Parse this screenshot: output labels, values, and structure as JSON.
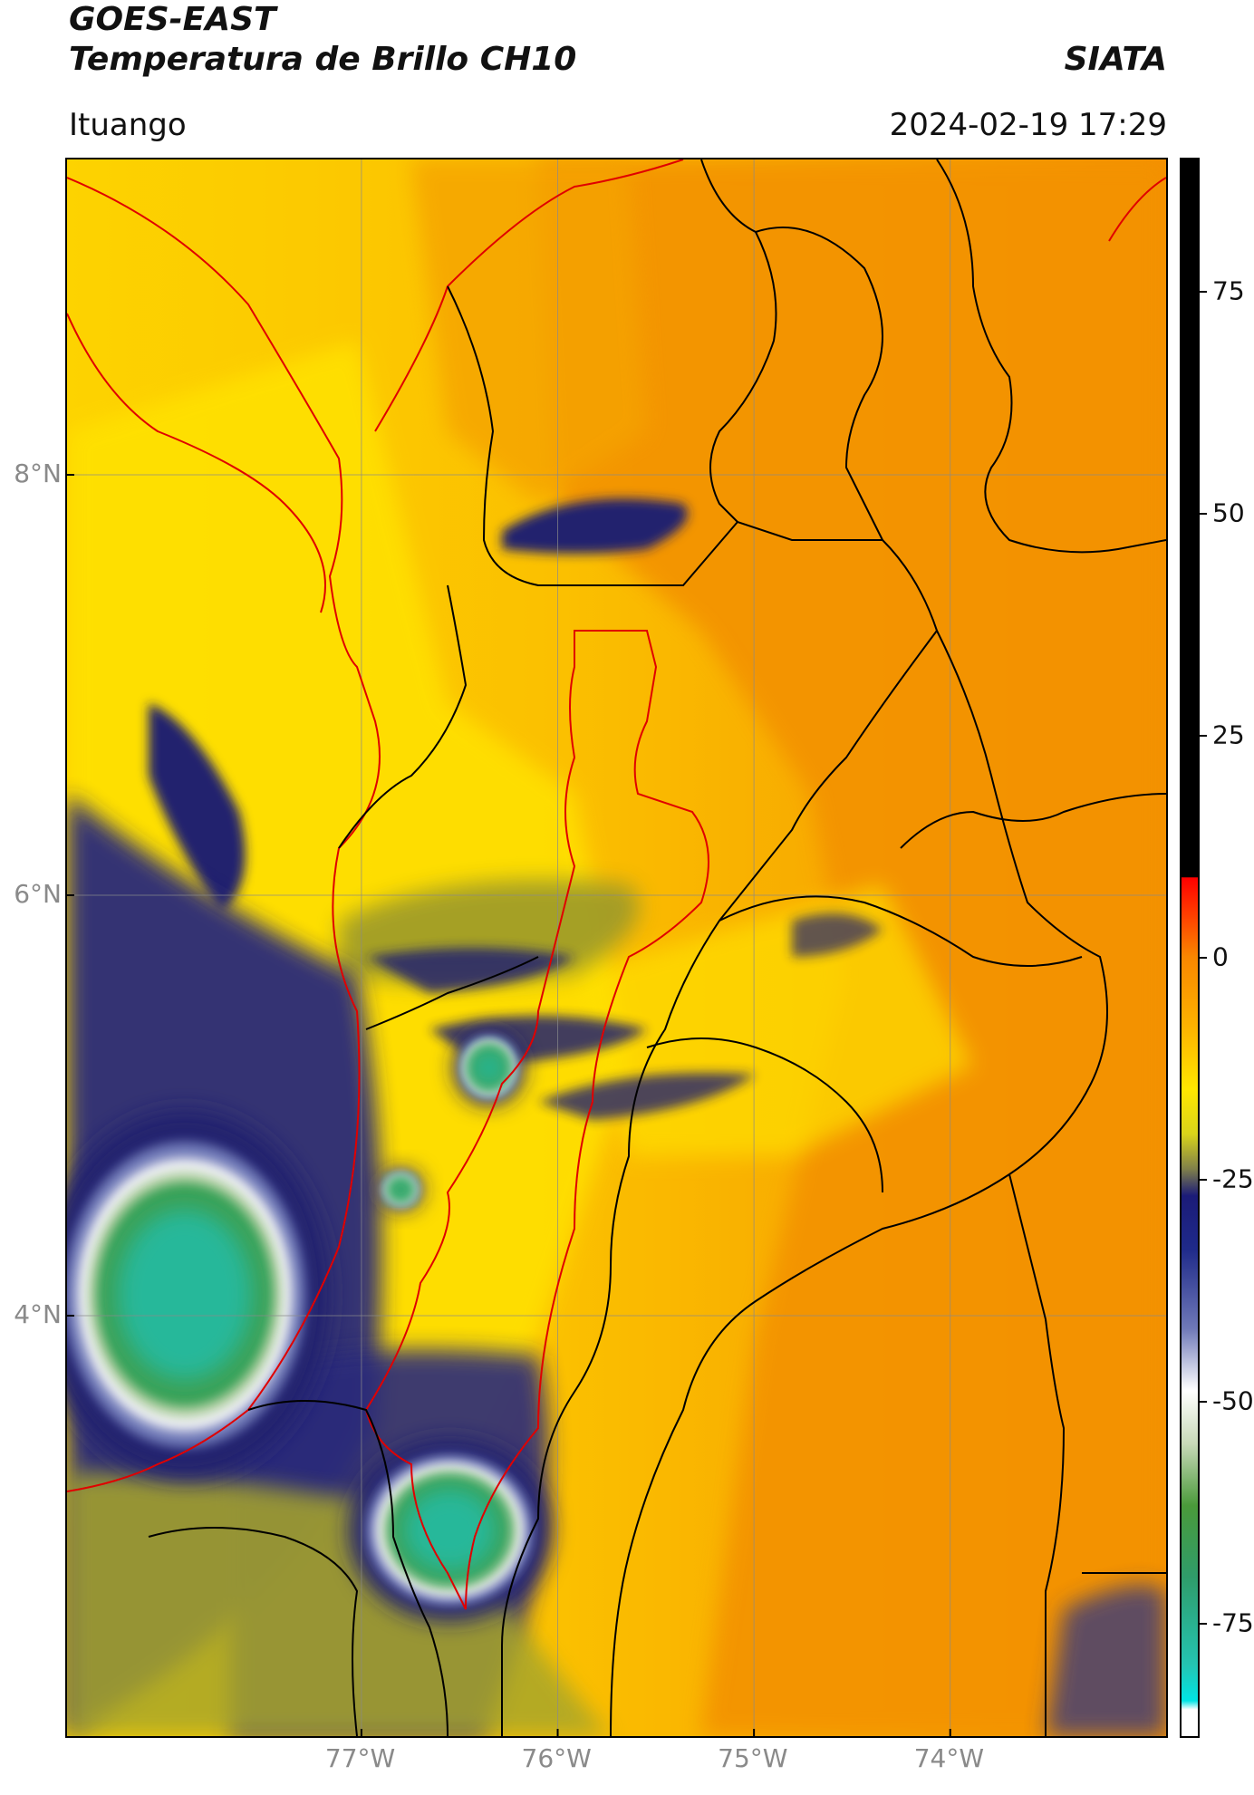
{
  "header": {
    "satellite": "GOES-EAST",
    "product": "Temperatura de Brillo CH10",
    "brand": "SIATA",
    "location": "Ituango",
    "datetime": "2024-02-19 17:29"
  },
  "map": {
    "lat_range": [
      2.0,
      9.5
    ],
    "lon_range": [
      -78.5,
      -72.9
    ],
    "lat_ticks": [
      {
        "value": 8,
        "label": "8°N"
      },
      {
        "value": 6,
        "label": "6°N"
      },
      {
        "value": 4,
        "label": "4°N"
      }
    ],
    "lon_ticks": [
      {
        "value": -77,
        "label": "77°W"
      },
      {
        "value": -76,
        "label": "76°W"
      },
      {
        "value": -75,
        "label": "75°W"
      },
      {
        "value": -74,
        "label": "74°W"
      }
    ],
    "gridlines": true,
    "cloud_cores": [
      {
        "name": "western-pacific-storm",
        "lon": -77.9,
        "lat": 4.1,
        "lon_r": 0.55,
        "lat_r": 0.65
      },
      {
        "name": "southern-storm",
        "lon": -76.55,
        "lat": 2.98,
        "lon_r": 0.38,
        "lat_r": 0.32
      },
      {
        "name": "central-cell",
        "lon": -76.35,
        "lat": 5.18,
        "lon_r": 0.13,
        "lat_r": 0.13
      },
      {
        "name": "small-cell",
        "lon": -76.8,
        "lat": 4.6,
        "lon_r": 0.08,
        "lat_r": 0.07
      }
    ],
    "colors": {
      "warm_orange": "#f39200",
      "orange": "#f7b300",
      "yellow": "#ffe500",
      "olive": "#a9a32a",
      "navy": "#20206e",
      "white": "#eef0f4",
      "green": "#3aa157",
      "teal": "#28b89a",
      "border_national": "#e00000",
      "border_departmental": "#000000",
      "grid": "#8a8a8a"
    }
  },
  "colorbar": {
    "range": [
      -88,
      90
    ],
    "ticks": [
      75,
      50,
      25,
      0,
      -25,
      -50,
      -75
    ],
    "tick_labels": [
      "75",
      "50",
      "25",
      "0",
      "-25",
      "-50",
      "-75"
    ],
    "stops": [
      {
        "value": 90,
        "color": "#000000"
      },
      {
        "value": 9,
        "color": "#000000"
      },
      {
        "value": 8.9,
        "color": "#ff0000"
      },
      {
        "value": 5,
        "color": "#ff3a00"
      },
      {
        "value": 0,
        "color": "#f98600"
      },
      {
        "value": -8,
        "color": "#fdb300"
      },
      {
        "value": -15,
        "color": "#ffe600"
      },
      {
        "value": -20,
        "color": "#d9d41a"
      },
      {
        "value": -24,
        "color": "#7f7f4a"
      },
      {
        "value": -27,
        "color": "#1b1b78"
      },
      {
        "value": -33,
        "color": "#1f2a8a"
      },
      {
        "value": -42,
        "color": "#6f79b8"
      },
      {
        "value": -49,
        "color": "#ffffff"
      },
      {
        "value": -55,
        "color": "#c8d9b8"
      },
      {
        "value": -62,
        "color": "#4a9a3a"
      },
      {
        "value": -70,
        "color": "#2f9c6a"
      },
      {
        "value": -80,
        "color": "#24c4b2"
      },
      {
        "value": -84,
        "color": "#00e5e5"
      },
      {
        "value": -85,
        "color": "#ffffff"
      },
      {
        "value": -88,
        "color": "#ffffff"
      }
    ]
  }
}
